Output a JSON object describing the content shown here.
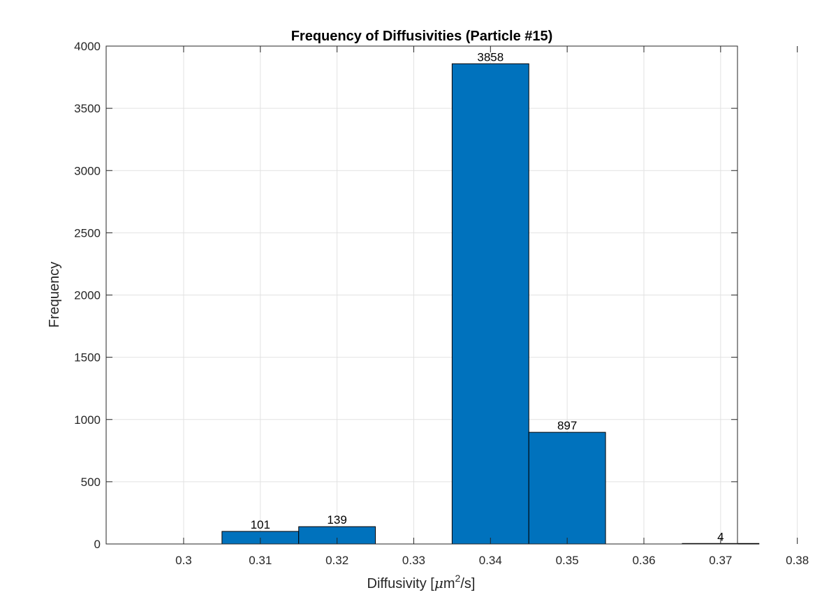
{
  "chart_data": {
    "type": "bar",
    "title": "Frequency of Diffusivities (Particle #15)",
    "xlabel": "Diffusivity [μm²/s]",
    "xlabel_parts": {
      "main": "Diffusivity [",
      "mu": "μ",
      "m": "m",
      "sup": "2",
      "tail": "/s]"
    },
    "ylabel": "Frequency",
    "x": [
      0.31,
      0.32,
      0.34,
      0.35,
      0.37
    ],
    "values": [
      101,
      139,
      3858,
      897,
      4
    ],
    "data_labels": [
      "101",
      "139",
      "3858",
      "897",
      "4"
    ],
    "bar_width": 0.01,
    "xlim": [
      0.2899,
      0.3722
    ],
    "ylim": [
      0,
      4000
    ],
    "xticks": [
      0.3,
      0.31,
      0.32,
      0.33,
      0.34,
      0.35,
      0.36,
      0.37,
      0.38
    ],
    "xtick_labels": [
      "0.3",
      "0.31",
      "0.32",
      "0.33",
      "0.34",
      "0.35",
      "0.36",
      "0.37",
      "0.38"
    ],
    "yticks": [
      0,
      500,
      1000,
      1500,
      2000,
      2500,
      3000,
      3500,
      4000
    ],
    "ytick_labels": [
      "0",
      "500",
      "1000",
      "1500",
      "2000",
      "2500",
      "3000",
      "3500",
      "4000"
    ],
    "grid": true,
    "colors": {
      "bar": "#0072bd",
      "grid": "#e2e2e2",
      "axis": "#262626"
    }
  }
}
